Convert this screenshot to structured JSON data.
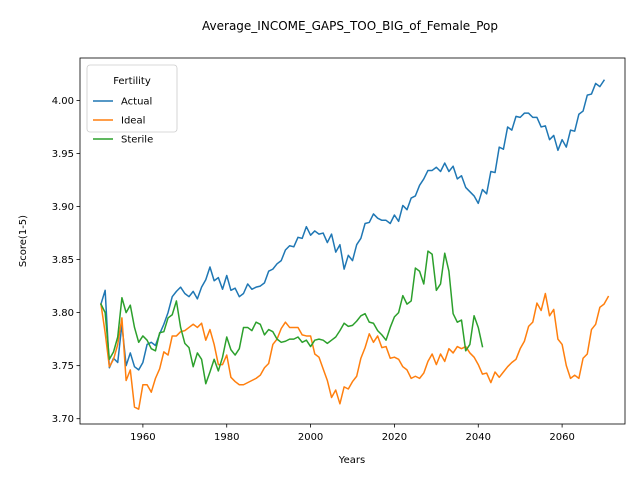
{
  "chart_data": {
    "type": "line",
    "title": "Average_INCOME_GAPS_TOO_BIG_of_Female_Pop",
    "xlabel": "Years",
    "ylabel": "Score(1-5)",
    "xlim": [
      1945,
      2075
    ],
    "ylim": [
      3.695,
      4.04
    ],
    "xticks": [
      1960,
      1980,
      2000,
      2020,
      2040,
      2060
    ],
    "yticks": [
      3.7,
      3.75,
      3.8,
      3.85,
      3.9,
      3.95,
      4.0
    ],
    "ytick_labels": [
      "3.70",
      "3.75",
      "3.80",
      "3.85",
      "3.90",
      "3.95",
      "4.00"
    ],
    "grid": false,
    "legend": {
      "title": "Fertility",
      "position": "top-left"
    },
    "series": [
      {
        "name": "Actual",
        "color": "#1f77b4",
        "x_start": 1950,
        "values": [
          3.808,
          3.821,
          3.748,
          3.757,
          3.753,
          3.789,
          3.75,
          3.762,
          3.749,
          3.746,
          3.753,
          3.77,
          3.772,
          3.769,
          3.78,
          3.789,
          3.8,
          3.815,
          3.82,
          3.824,
          3.818,
          3.815,
          3.82,
          3.813,
          3.824,
          3.831,
          3.843,
          3.83,
          3.833,
          3.822,
          3.835,
          3.821,
          3.823,
          3.815,
          3.818,
          3.827,
          3.822,
          3.824,
          3.825,
          3.828,
          3.839,
          3.841,
          3.846,
          3.849,
          3.859,
          3.863,
          3.862,
          3.871,
          3.87,
          3.881,
          3.873,
          3.877,
          3.874,
          3.875,
          3.866,
          3.874,
          3.857,
          3.864,
          3.841,
          3.854,
          3.849,
          3.864,
          3.87,
          3.884,
          3.885,
          3.893,
          3.889,
          3.887,
          3.887,
          3.884,
          3.892,
          3.886,
          3.901,
          3.897,
          3.908,
          3.91,
          3.92,
          3.926,
          3.934,
          3.934,
          3.937,
          3.933,
          3.941,
          3.933,
          3.938,
          3.926,
          3.929,
          3.918,
          3.914,
          3.91,
          3.903,
          3.916,
          3.912,
          3.933,
          3.932,
          3.956,
          3.954,
          3.975,
          3.972,
          3.985,
          3.984,
          3.988,
          3.988,
          3.984,
          3.984,
          3.975,
          3.976,
          3.963,
          3.967,
          3.953,
          3.963,
          3.956,
          3.972,
          3.971,
          3.987,
          3.99,
          4.005,
          4.006,
          4.016,
          4.013,
          4.019
        ]
      },
      {
        "name": "Ideal",
        "color": "#ff7f0e",
        "x_start": 1950,
        "values": [
          3.808,
          3.781,
          3.749,
          3.756,
          3.77,
          3.795,
          3.736,
          3.746,
          3.711,
          3.709,
          3.732,
          3.732,
          3.725,
          3.738,
          3.747,
          3.763,
          3.76,
          3.778,
          3.778,
          3.782,
          3.783,
          3.786,
          3.789,
          3.786,
          3.79,
          3.774,
          3.784,
          3.77,
          3.751,
          3.751,
          3.76,
          3.739,
          3.735,
          3.732,
          3.732,
          3.734,
          3.736,
          3.738,
          3.741,
          3.748,
          3.752,
          3.77,
          3.775,
          3.785,
          3.791,
          3.786,
          3.786,
          3.786,
          3.779,
          3.778,
          3.778,
          3.761,
          3.758,
          3.747,
          3.736,
          3.72,
          3.727,
          3.714,
          3.73,
          3.728,
          3.735,
          3.74,
          3.757,
          3.767,
          3.78,
          3.772,
          3.778,
          3.767,
          3.768,
          3.757,
          3.758,
          3.756,
          3.749,
          3.746,
          3.738,
          3.74,
          3.738,
          3.743,
          3.754,
          3.761,
          3.751,
          3.761,
          3.754,
          3.766,
          3.762,
          3.768,
          3.766,
          3.768,
          3.762,
          3.758,
          3.751,
          3.742,
          3.743,
          3.734,
          3.744,
          3.739,
          3.744,
          3.749,
          3.753,
          3.756,
          3.766,
          3.773,
          3.787,
          3.791,
          3.809,
          3.802,
          3.818,
          3.797,
          3.803,
          3.775,
          3.77,
          3.75,
          3.738,
          3.741,
          3.738,
          3.757,
          3.761,
          3.784,
          3.789,
          3.805,
          3.808,
          3.815
        ]
      },
      {
        "name": "Sterile",
        "color": "#2ca02c",
        "x_start": 1950,
        "values": [
          3.808,
          3.8,
          3.756,
          3.763,
          3.777,
          3.814,
          3.8,
          3.807,
          3.786,
          3.772,
          3.778,
          3.774,
          3.766,
          3.764,
          3.781,
          3.782,
          3.795,
          3.798,
          3.811,
          3.786,
          3.771,
          3.767,
          3.749,
          3.762,
          3.756,
          3.733,
          3.744,
          3.756,
          3.745,
          3.758,
          3.777,
          3.765,
          3.76,
          3.766,
          3.786,
          3.786,
          3.783,
          3.791,
          3.789,
          3.779,
          3.784,
          3.782,
          3.775,
          3.772,
          3.773,
          3.775,
          3.775,
          3.777,
          3.772,
          3.774,
          3.768,
          3.774,
          3.775,
          3.774,
          3.771,
          3.774,
          3.777,
          3.783,
          3.79,
          3.787,
          3.788,
          3.792,
          3.797,
          3.799,
          3.791,
          3.79,
          3.783,
          3.779,
          3.774,
          3.786,
          3.796,
          3.8,
          3.816,
          3.808,
          3.811,
          3.842,
          3.839,
          3.827,
          3.858,
          3.855,
          3.821,
          3.827,
          3.856,
          3.839,
          3.799,
          3.791,
          3.793,
          3.764,
          3.77,
          3.797,
          3.786,
          3.768
        ]
      }
    ]
  }
}
